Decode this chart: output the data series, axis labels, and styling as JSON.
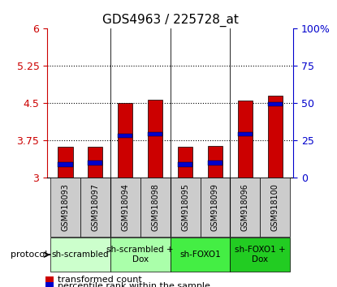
{
  "title": "GDS4963 / 225728_at",
  "samples": [
    "GSM918093",
    "GSM918097",
    "GSM918094",
    "GSM918098",
    "GSM918095",
    "GSM918099",
    "GSM918096",
    "GSM918100"
  ],
  "red_values": [
    3.63,
    3.62,
    4.5,
    4.57,
    3.62,
    3.65,
    4.56,
    4.65
  ],
  "blue_values": [
    3.27,
    3.3,
    3.85,
    3.88,
    3.27,
    3.3,
    3.88,
    4.48
  ],
  "ymin": 3.0,
  "ymax": 6.0,
  "yticks": [
    3.0,
    3.75,
    4.5,
    5.25,
    6.0
  ],
  "ytick_labels": [
    "3",
    "3.75",
    "4.5",
    "5.25",
    "6"
  ],
  "y2ticks": [
    0,
    25,
    50,
    75,
    100
  ],
  "y2tick_labels": [
    "0",
    "25",
    "50",
    "75",
    "100%"
  ],
  "dotted_lines": [
    3.75,
    4.5,
    5.25
  ],
  "bar_width": 0.5,
  "blue_bar_height": 0.09,
  "protocols": [
    {
      "label": "sh-scrambled",
      "start": 0,
      "end": 2,
      "color": "#ccffcc"
    },
    {
      "label": "sh-scrambled +\nDox",
      "start": 2,
      "end": 4,
      "color": "#aaffaa"
    },
    {
      "label": "sh-FOXO1",
      "start": 4,
      "end": 6,
      "color": "#44ee44"
    },
    {
      "label": "sh-FOXO1 +\nDox",
      "start": 6,
      "end": 8,
      "color": "#22cc22"
    }
  ],
  "group_separators": [
    1.5,
    3.5,
    5.5
  ],
  "protocol_label": "protocol",
  "legend_red": "transformed count",
  "legend_blue": "percentile rank within the sample",
  "red_color": "#cc0000",
  "blue_color": "#0000cc",
  "bar_edge_color": "#000000",
  "left_tick_color": "#cc0000",
  "right_tick_color": "#0000cc",
  "sample_box_color": "#cccccc",
  "figsize": [
    4.15,
    3.54
  ],
  "dpi": 100
}
